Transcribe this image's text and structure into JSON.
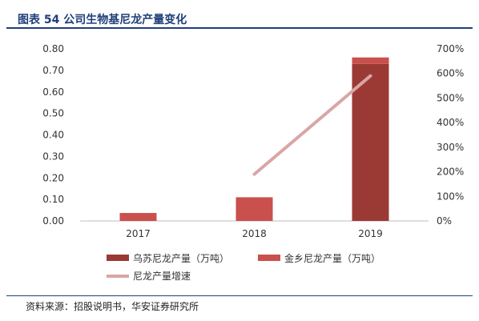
{
  "header": {
    "title": "图表 54 公司生物基尼龙产量变化"
  },
  "footer": {
    "source": "资料来源：招股说明书，华安证券研究所"
  },
  "chart_data": {
    "type": "bar",
    "categories": [
      "2017",
      "2018",
      "2019"
    ],
    "series": [
      {
        "name": "乌苏尼龙产量（万吨）",
        "kind": "bar",
        "axis": "left",
        "stack": "s",
        "color": "#9b3a35",
        "values": [
          0.0,
          0.0,
          0.73
        ]
      },
      {
        "name": "金乡尼龙产量（万吨）",
        "kind": "bar",
        "axis": "left",
        "stack": "s",
        "color": "#c9504d",
        "values": [
          0.037,
          0.11,
          0.03
        ]
      },
      {
        "name": "尼龙产量增速",
        "kind": "line",
        "axis": "right",
        "color": "#d9a6a5",
        "values": [
          null,
          1.9,
          5.9
        ]
      }
    ],
    "y_left": {
      "ylim": [
        0,
        0.8
      ],
      "ticks": [
        "0.00",
        "0.10",
        "0.20",
        "0.30",
        "0.40",
        "0.50",
        "0.60",
        "0.70",
        "0.80"
      ]
    },
    "y_right": {
      "ylim": [
        0,
        7
      ],
      "ticks": [
        "0%",
        "100%",
        "200%",
        "300%",
        "400%",
        "500%",
        "600%",
        "700%"
      ]
    },
    "legend_position": "bottom",
    "grid": false
  }
}
